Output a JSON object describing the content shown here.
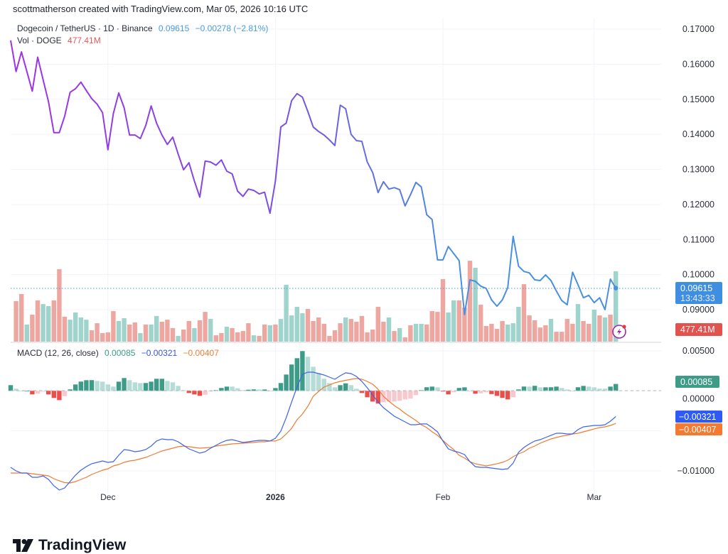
{
  "header": {
    "credit": "scottmatherson created with TradingView.com, Mar 05, 2026 10:16 UTC"
  },
  "legend": {
    "symbol": "Dogecoin / TetherUS · 1D · Binance",
    "last_price": "0.09615",
    "change": "−0.00278 (−2.81%)",
    "volume_label": "Vol · DOGE",
    "volume_value": "477.41M",
    "macd_label": "MACD (12, 26, close)",
    "macd_hist": "0.00085",
    "macd_line": "−0.00321",
    "macd_signal": "−0.00407"
  },
  "price_axis": {
    "ticks": [
      "0.17000",
      "0.16000",
      "0.15000",
      "0.14000",
      "0.13000",
      "0.12000",
      "0.11000",
      "0.10000",
      "0.09000"
    ],
    "last_price_tag": "0.09615",
    "countdown": "13:43:33",
    "volume_tag": "477.41M"
  },
  "macd_axis": {
    "ticks": [
      "0.00500",
      "0.00000",
      "−0.01000"
    ],
    "hist_tag": "0.00085",
    "macd_tag": "−0.00321",
    "signal_tag": "−0.00407"
  },
  "time_axis": {
    "ticks": [
      {
        "label": "Dec",
        "date": "2025-12-01",
        "bold": false
      },
      {
        "label": "2026",
        "date": "2026-01-01",
        "bold": true
      },
      {
        "label": "Feb",
        "date": "2026-02-01",
        "bold": false
      },
      {
        "label": "Mar",
        "date": "2026-03-01",
        "bold": false
      }
    ]
  },
  "colors": {
    "price_line_start": "#a032e6",
    "price_line_end": "#4a8fe0",
    "last_price": "#4a9be0",
    "volume_up": "#9fd4cd",
    "volume_down": "#eea6a1",
    "volume_tag": "#e0534f",
    "macd_line": "#3c64e8",
    "signal_line": "#f07b32",
    "hist_up_strong": "#3d9c88",
    "hist_up_weak": "#b5dcd6",
    "hist_down_strong": "#ec4f4a",
    "hist_down_weak": "#f7c9cf",
    "macd_legend_hist": "#3d9e88"
  },
  "footer": {
    "brand": "TradingView"
  },
  "chart_data": {
    "type": "line",
    "title": "Dogecoin / TetherUS · 1D · Binance",
    "interval": "1D",
    "x_range": [
      "2025-11-13",
      "2026-03-05"
    ],
    "ylim": [
      0.085,
      0.172
    ],
    "grid": true,
    "close": [
      0.1668,
      0.1579,
      0.1635,
      0.1579,
      0.1523,
      0.162,
      0.1556,
      0.1493,
      0.1405,
      0.1405,
      0.1452,
      0.152,
      0.153,
      0.1549,
      0.1525,
      0.1502,
      0.1486,
      0.1462,
      0.1356,
      0.1459,
      0.1518,
      0.1476,
      0.1398,
      0.1398,
      0.1388,
      0.1425,
      0.1481,
      0.1432,
      0.1398,
      0.1371,
      0.1392,
      0.1344,
      0.1299,
      0.1319,
      0.1267,
      0.1221,
      0.1324,
      0.1321,
      0.1312,
      0.1327,
      0.1295,
      0.1287,
      0.1238,
      0.1223,
      0.1244,
      0.124,
      0.123,
      0.1235,
      0.1175,
      0.1267,
      0.1421,
      0.1432,
      0.1496,
      0.1516,
      0.1506,
      0.1465,
      0.1421,
      0.1408,
      0.1398,
      0.1384,
      0.1368,
      0.1483,
      0.1473,
      0.14,
      0.1382,
      0.138,
      0.1321,
      0.1291,
      0.1234,
      0.1265,
      0.1244,
      0.1248,
      0.1242,
      0.1196,
      0.1228,
      0.1263,
      0.125,
      0.1171,
      0.1157,
      0.1042,
      0.1042,
      0.108,
      0.106,
      0.104,
      0.0886,
      0.0985,
      0.0981,
      0.0967,
      0.0961,
      0.0928,
      0.091,
      0.0928,
      0.0963,
      0.1109,
      0.1024,
      0.1009,
      0.1005,
      0.0985,
      0.0983,
      0.0999,
      0.0983,
      0.0953,
      0.0926,
      0.0914,
      0.1007,
      0.0971,
      0.0934,
      0.0941,
      0.092,
      0.0934,
      0.09,
      0.0987,
      0.09615
    ],
    "volume_millions": [
      null,
      275,
      323,
      116,
      183,
      280,
      255,
      241,
      280,
      492,
      169,
      149,
      198,
      164,
      149,
      77,
      125,
      58,
      63,
      207,
      140,
      159,
      116,
      130,
      58,
      116,
      116,
      174,
      135,
      149,
      92,
      39,
      82,
      140,
      92,
      145,
      202,
      154,
      43,
      58,
      101,
      92,
      63,
      72,
      125,
      43,
      39,
      116,
      111,
      116,
      154,
      386,
      178,
      236,
      193,
      222,
      140,
      164,
      121,
      39,
      77,
      125,
      164,
      154,
      135,
      174,
      63,
      82,
      236,
      135,
      164,
      72,
      92,
      29,
      111,
      121,
      121,
      116,
      207,
      202,
      424,
      198,
      280,
      280,
      231,
      549,
      501,
      251,
      106,
      121,
      87,
      140,
      116,
      125,
      236,
      390,
      178,
      145,
      96,
      111,
      154,
      67,
      67,
      154,
      121,
      255,
      140,
      121,
      217,
      178,
      164,
      183,
      477.41
    ],
    "volume_direction": [
      null,
      "d",
      "d",
      "u",
      "d",
      "d",
      "u",
      "u",
      "d",
      "d",
      "d",
      "u",
      "u",
      "u",
      "u",
      "d",
      "d",
      "d",
      "d",
      "d",
      "u",
      "u",
      "d",
      "d",
      "u",
      "d",
      "u",
      "u",
      "d",
      "d",
      "d",
      "u",
      "d",
      "d",
      "u",
      "d",
      "d",
      "u",
      "d",
      "d",
      "u",
      "d",
      "d",
      "d",
      "d",
      "u",
      "d",
      "d",
      "u",
      "d",
      "u",
      "u",
      "u",
      "u",
      "u",
      "d",
      "d",
      "d",
      "d",
      "d",
      "d",
      "d",
      "u",
      "d",
      "d",
      "d",
      "d",
      "d",
      "d",
      "d",
      "u",
      "d",
      "u",
      "d",
      "d",
      "u",
      "u",
      "d",
      "d",
      "d",
      "d",
      "u",
      "u",
      "d",
      "d",
      "d",
      "u",
      "d",
      "d",
      "d",
      "d",
      "d",
      "u",
      "u",
      "u",
      "d",
      "d",
      "d",
      "d",
      "d",
      "u",
      "d",
      "d",
      "d",
      "d",
      "u",
      "d",
      "d",
      "u",
      "d",
      "u",
      "d",
      "u"
    ],
    "macd": {
      "params": "12, 26, close",
      "ylim": [
        -0.0135,
        0.0062
      ],
      "macd_line": [
        -0.00956,
        -0.01,
        -0.01027,
        -0.01027,
        -0.0108,
        -0.0108,
        -0.01062,
        -0.01107,
        -0.01187,
        -0.0124,
        -0.01213,
        -0.01133,
        -0.01053,
        -0.00991,
        -0.00947,
        -0.00911,
        -0.00894,
        -0.00876,
        -0.00894,
        -0.00885,
        -0.00805,
        -0.00734,
        -0.00743,
        -0.00761,
        -0.00752,
        -0.00734,
        -0.0069,
        -0.00627,
        -0.00601,
        -0.0061,
        -0.0061,
        -0.00636,
        -0.00681,
        -0.00725,
        -0.00752,
        -0.00778,
        -0.00761,
        -0.00716,
        -0.00681,
        -0.00645,
        -0.00619,
        -0.0061,
        -0.00627,
        -0.00645,
        -0.00636,
        -0.00627,
        -0.00619,
        -0.00619,
        -0.00627,
        -0.00592,
        -0.00503,
        -0.00335,
        -0.00139,
        0.00047,
        0.00207,
        0.00233,
        0.00233,
        0.00216,
        0.00198,
        0.00171,
        0.00145,
        0.00189,
        0.00225,
        0.00216,
        0.0018,
        0.00118,
        0.00038,
        -0.00051,
        -0.00139,
        -0.0021,
        -0.00264,
        -0.00317,
        -0.00352,
        -0.00388,
        -0.00423,
        -0.00423,
        -0.00414,
        -0.00414,
        -0.00459,
        -0.00512,
        -0.00627,
        -0.00725,
        -0.00752,
        -0.00769,
        -0.00796,
        -0.00885,
        -0.00947,
        -0.00956,
        -0.00956,
        -0.00965,
        -0.00974,
        -0.00982,
        -0.00974,
        -0.00903,
        -0.00769,
        -0.00707,
        -0.00663,
        -0.00627,
        -0.0061,
        -0.00583,
        -0.00556,
        -0.0053,
        -0.0053,
        -0.00539,
        -0.00539,
        -0.00485,
        -0.0045,
        -0.00441,
        -0.00432,
        -0.00432,
        -0.00423,
        -0.00379,
        -0.00321
      ],
      "signal_line": [
        -0.01027,
        -0.01027,
        -0.01027,
        -0.01027,
        -0.01036,
        -0.01045,
        -0.01053,
        -0.01062,
        -0.01098,
        -0.01124,
        -0.01147,
        -0.01151,
        -0.01133,
        -0.01107,
        -0.0108,
        -0.01045,
        -0.01018,
        -0.00991,
        -0.00974,
        -0.00938,
        -0.0092,
        -0.00894,
        -0.00876,
        -0.00867,
        -0.00849,
        -0.00832,
        -0.00805,
        -0.00778,
        -0.00752,
        -0.00734,
        -0.00716,
        -0.00698,
        -0.0069,
        -0.00698,
        -0.00707,
        -0.00716,
        -0.00712,
        -0.00707,
        -0.0069,
        -0.00681,
        -0.00672,
        -0.00663,
        -0.00659,
        -0.00654,
        -0.0065,
        -0.00645,
        -0.00636,
        -0.00636,
        -0.00627,
        -0.00627,
        -0.00601,
        -0.00539,
        -0.00468,
        -0.00361,
        -0.0029,
        -0.00193,
        -0.00068,
        -6e-05,
        0.00047,
        0.00074,
        0.001,
        0.00118,
        0.00131,
        0.00145,
        0.00154,
        0.00145,
        0.00118,
        0.00083,
        0.0002,
        -0.00068,
        -0.0013,
        -0.00184,
        -0.00228,
        -0.00281,
        -0.00326,
        -0.0037,
        -0.00423,
        -0.00459,
        -0.00512,
        -0.00556,
        -0.00619,
        -0.00681,
        -0.00734,
        -0.00805,
        -0.0084,
        -0.00885,
        -0.00911,
        -0.00925,
        -0.00938,
        -0.00925,
        -0.00911,
        -0.00894,
        -0.00867,
        -0.00823,
        -0.00787,
        -0.00761,
        -0.00716,
        -0.0069,
        -0.00654,
        -0.00627,
        -0.00601,
        -0.00583,
        -0.00565,
        -0.00556,
        -0.00539,
        -0.0053,
        -0.00512,
        -0.00494,
        -0.00476,
        -0.00459,
        -0.0045,
        -0.00432,
        -0.00407
      ]
    }
  }
}
